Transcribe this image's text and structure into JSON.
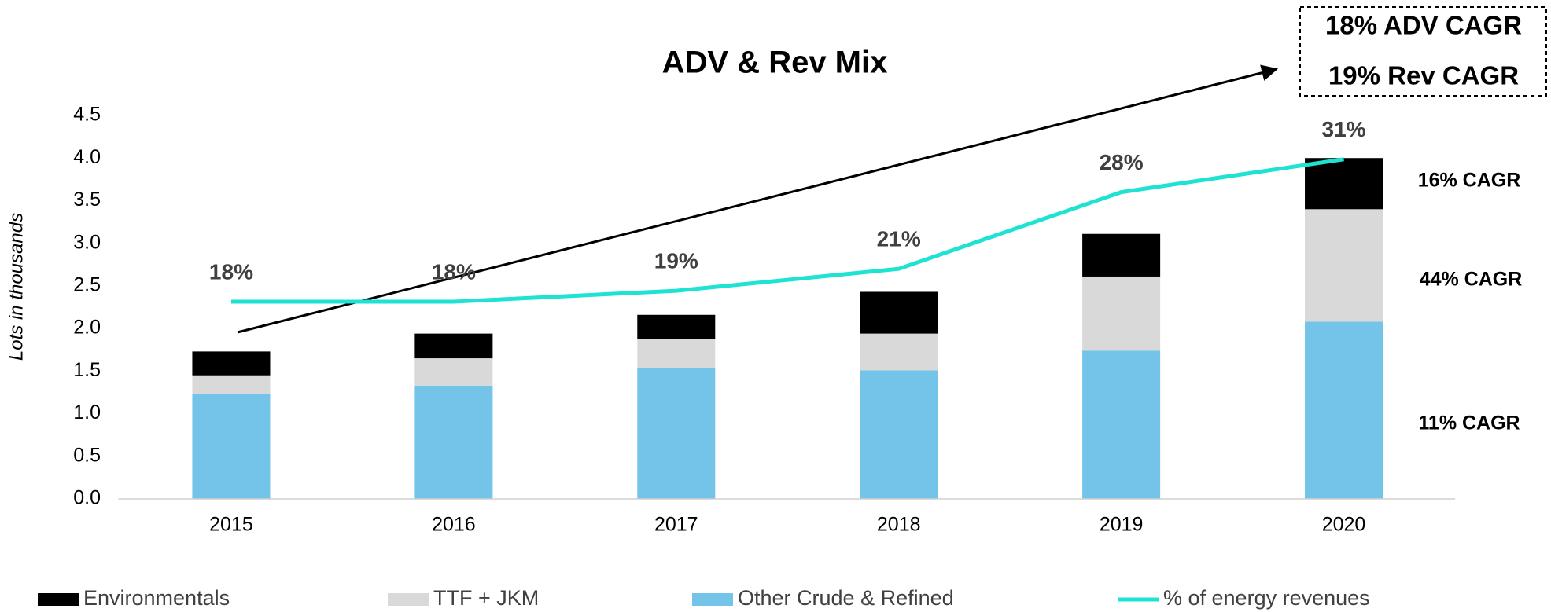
{
  "chart_data": {
    "type": "bar",
    "stacked": true,
    "title": "ADV & Rev Mix",
    "ylabel": "Lots in thousands",
    "categories": [
      "2015",
      "2016",
      "2017",
      "2018",
      "2019",
      "2020"
    ],
    "series": [
      {
        "name": "Other Crude & Refined",
        "color": "#73c4e8",
        "values": [
          1.23,
          1.33,
          1.54,
          1.51,
          1.74,
          2.08
        ]
      },
      {
        "name": "TTF + JKM",
        "color": "#d9d9d9",
        "values": [
          0.22,
          0.32,
          0.34,
          0.43,
          0.87,
          1.32
        ]
      },
      {
        "name": "Environmentals",
        "color": "#000000",
        "values": [
          0.28,
          0.29,
          0.28,
          0.49,
          0.5,
          0.6
        ]
      },
      {
        "name": "% of energy revenues",
        "type": "line",
        "axis": "y2",
        "color": "#1ee3d3",
        "values": [
          18,
          18,
          19,
          21,
          28,
          31
        ],
        "value_labels": [
          "18%",
          "18%",
          "19%",
          "21%",
          "28%",
          "31%"
        ]
      }
    ],
    "legend_order": [
      2,
      1,
      0,
      3
    ],
    "legend": "bottom",
    "ylim": [
      0,
      4.5
    ],
    "yticks": [
      {
        "value": 0,
        "label": "0.0"
      },
      0.5,
      {
        "value": 1,
        "label": "1.0"
      },
      1.5,
      {
        "value": 2,
        "label": "2.0"
      },
      2.5,
      {
        "value": 3,
        "label": "3.0"
      },
      3.5,
      {
        "value": 4,
        "label": "4.0"
      },
      4.5
    ],
    "y2lim": [
      0,
      35
    ],
    "grid": false,
    "annotations": {
      "box": [
        "18% ADV CAGR",
        "19% Rev CAGR"
      ],
      "segment_cagr": [
        "16% CAGR",
        "44% CAGR",
        "11% CAGR"
      ]
    }
  }
}
